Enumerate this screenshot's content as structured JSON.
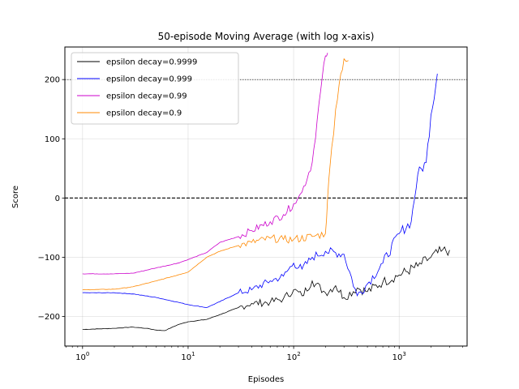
{
  "chart_data": {
    "type": "line",
    "title": "50-episode Moving Average (with log x-axis)",
    "xlabel": "Episodes",
    "ylabel": "Score",
    "xscale": "log",
    "xlim": [
      0.68,
      4400
    ],
    "ylim": [
      -250,
      255
    ],
    "x_ticks": [
      {
        "value": 1,
        "base": "10",
        "exp": "0"
      },
      {
        "value": 10,
        "base": "10",
        "exp": "1"
      },
      {
        "value": 100,
        "base": "10",
        "exp": "2"
      },
      {
        "value": 1000,
        "base": "10",
        "exp": "3"
      }
    ],
    "y_ticks": [
      {
        "value": -200,
        "label": "−200"
      },
      {
        "value": -100,
        "label": "−100"
      },
      {
        "value": 0,
        "label": "0"
      },
      {
        "value": 100,
        "label": "100"
      },
      {
        "value": 200,
        "label": "200"
      }
    ],
    "grid": true,
    "legend_position": "top-left",
    "reference_lines": [
      {
        "y": 200,
        "style": "dotted",
        "color": "#000000"
      },
      {
        "y": 0,
        "style": "dashed",
        "color": "#000000"
      }
    ],
    "series": [
      {
        "name": "epsilon decay=0.9999",
        "color": "#000000",
        "x": [
          1,
          2,
          3,
          4,
          5,
          6,
          8,
          10,
          15,
          20,
          30,
          40,
          60,
          80,
          100,
          120,
          150,
          200,
          250,
          300,
          400,
          500,
          700,
          1000,
          1500,
          2000,
          2500,
          3000
        ],
        "y": [
          -222,
          -220,
          -218,
          -220,
          -223,
          -224,
          -214,
          -209,
          -205,
          -197,
          -185,
          -178,
          -176,
          -170,
          -155,
          -165,
          -140,
          -160,
          -148,
          -168,
          -152,
          -158,
          -142,
          -130,
          -115,
          -100,
          -90,
          -88
        ]
      },
      {
        "name": "epsilon decay=0.999",
        "color": "#0000ff",
        "x": [
          1,
          2,
          3,
          5,
          8,
          10,
          15,
          20,
          30,
          40,
          60,
          80,
          100,
          120,
          150,
          200,
          300,
          400,
          500,
          700,
          1000,
          1300,
          1500,
          1800,
          2000,
          2300
        ],
        "y": [
          -160,
          -160,
          -162,
          -168,
          -176,
          -180,
          -185,
          -175,
          -160,
          -155,
          -140,
          -132,
          -110,
          -120,
          -100,
          -90,
          -95,
          -165,
          -145,
          -110,
          -60,
          -40,
          40,
          60,
          140,
          210
        ]
      },
      {
        "name": "epsilon decay=0.99",
        "color": "#cc00cc",
        "x": [
          1,
          2,
          3,
          5,
          8,
          10,
          15,
          20,
          30,
          40,
          60,
          80,
          100,
          110,
          120,
          150,
          180,
          200,
          210
        ],
        "y": [
          -128,
          -128,
          -127,
          -118,
          -110,
          -104,
          -92,
          -75,
          -65,
          -55,
          -40,
          -28,
          -10,
          0,
          10,
          60,
          180,
          240,
          245
        ]
      },
      {
        "name": "epsilon decay=0.9",
        "color": "#ff8800",
        "x": [
          1,
          2,
          3,
          5,
          8,
          10,
          15,
          20,
          30,
          40,
          60,
          80,
          100,
          150,
          200,
          210,
          220,
          250,
          280,
          300,
          330
        ],
        "y": [
          -155,
          -154,
          -150,
          -140,
          -130,
          -125,
          -100,
          -90,
          -80,
          -75,
          -68,
          -70,
          -70,
          -65,
          -60,
          0,
          50,
          150,
          210,
          235,
          232
        ]
      }
    ]
  }
}
